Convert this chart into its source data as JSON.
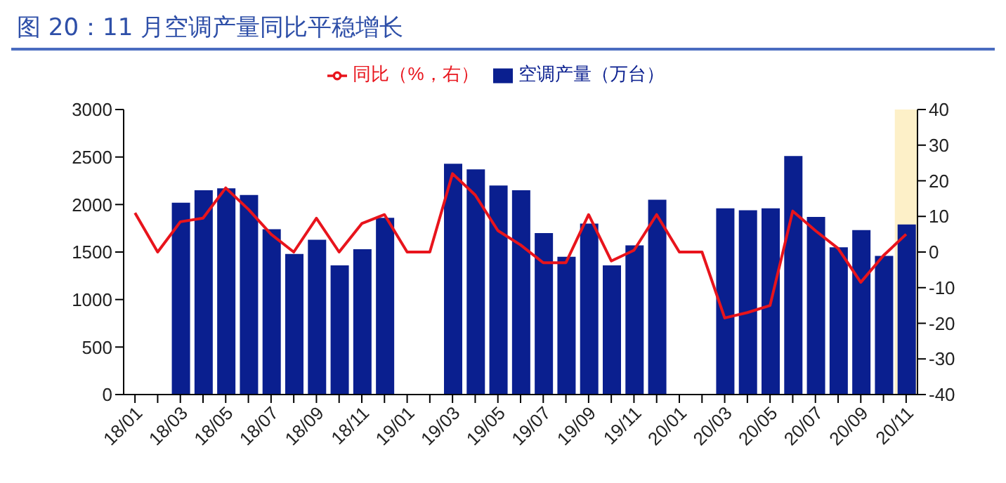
{
  "chart_data": {
    "type": "bar",
    "title": "图 20：11 月空调产量同比平稳增长",
    "categories": [
      "18/01",
      null,
      "18/03",
      null,
      "18/05",
      null,
      "18/07",
      null,
      "18/09",
      null,
      "18/11",
      null,
      "19/01",
      null,
      "19/03",
      null,
      "19/05",
      null,
      "19/07",
      null,
      "19/09",
      null,
      "19/11",
      null,
      "20/01",
      null,
      "20/03",
      null,
      "20/05",
      null,
      "20/07",
      null,
      "20/09",
      null,
      "20/11"
    ],
    "series": [
      {
        "name": "空调产量（万台）",
        "color": "#0a1f8f",
        "values": [
          null,
          null,
          2020,
          2150,
          2170,
          2100,
          1740,
          1480,
          1630,
          1360,
          1530,
          1860,
          null,
          null,
          2430,
          2370,
          2200,
          2150,
          1700,
          1450,
          1800,
          1360,
          1570,
          2050,
          null,
          null,
          1960,
          1940,
          1960,
          2510,
          1870,
          1550,
          1730,
          1460,
          1790
        ]
      },
      {
        "name": "同比（%，右）",
        "type": "line",
        "axis": "y2",
        "color": "#e8141c",
        "values": [
          11,
          0,
          8.5,
          9.5,
          18,
          12,
          5,
          0,
          9.5,
          0,
          8,
          10.5,
          0,
          0,
          22,
          16,
          6,
          2,
          -3,
          -3,
          10.5,
          -2.5,
          0.5,
          10.5,
          0,
          0,
          -18.5,
          -17,
          -15,
          11.5,
          6,
          1,
          -8.5,
          -1,
          5
        ]
      }
    ],
    "ylim": [
      0,
      3000
    ],
    "yticks": [
      0,
      500,
      1000,
      1500,
      2000,
      2500,
      3000
    ],
    "y2lim": [
      -40,
      40
    ],
    "y2ticks": [
      -40,
      -30,
      -20,
      -10,
      0,
      10,
      20,
      30,
      40
    ],
    "bands": [
      {
        "axis": "x",
        "from": "20/11",
        "to": "20/11",
        "color": "#fdf0c8"
      }
    ],
    "legend": "top",
    "grid": false,
    "marker": "none"
  }
}
